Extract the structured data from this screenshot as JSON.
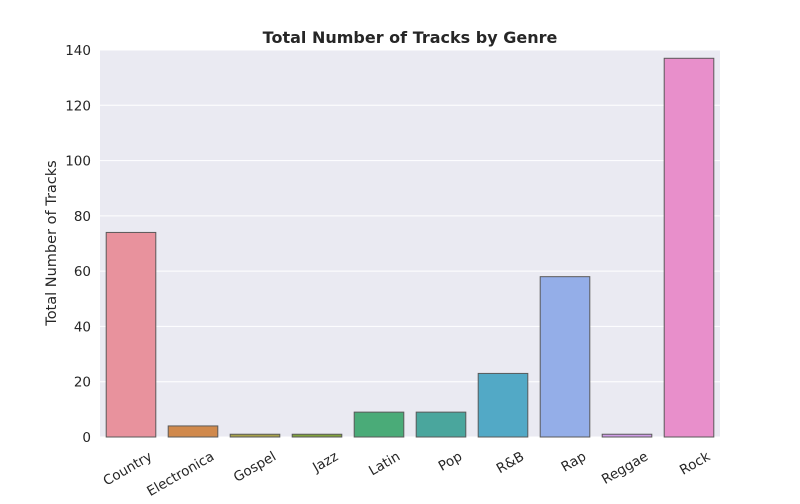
{
  "chart_data": {
    "type": "bar",
    "title": "Total Number of Tracks by Genre",
    "xlabel": "",
    "ylabel": "Total Number of Tracks",
    "categories": [
      "Country",
      "Electronica",
      "Gospel",
      "Jazz",
      "Latin",
      "Pop",
      "R&B",
      "Rap",
      "Reggae",
      "Rock"
    ],
    "values": [
      74,
      4,
      1,
      1,
      9,
      9,
      23,
      58,
      1,
      137
    ],
    "ylim": [
      0,
      140
    ],
    "yticks": [
      0,
      20,
      40,
      60,
      80,
      100,
      120,
      140
    ],
    "grid": true,
    "legend": "none",
    "colors": [
      "#e8929d",
      "#d0894c",
      "#a8a24a",
      "#82a33d",
      "#4aab78",
      "#4aa69d",
      "#52a9c6",
      "#94aee8",
      "#d09de8",
      "#e88fcb"
    ],
    "plot_background": "#eaeaf2"
  }
}
